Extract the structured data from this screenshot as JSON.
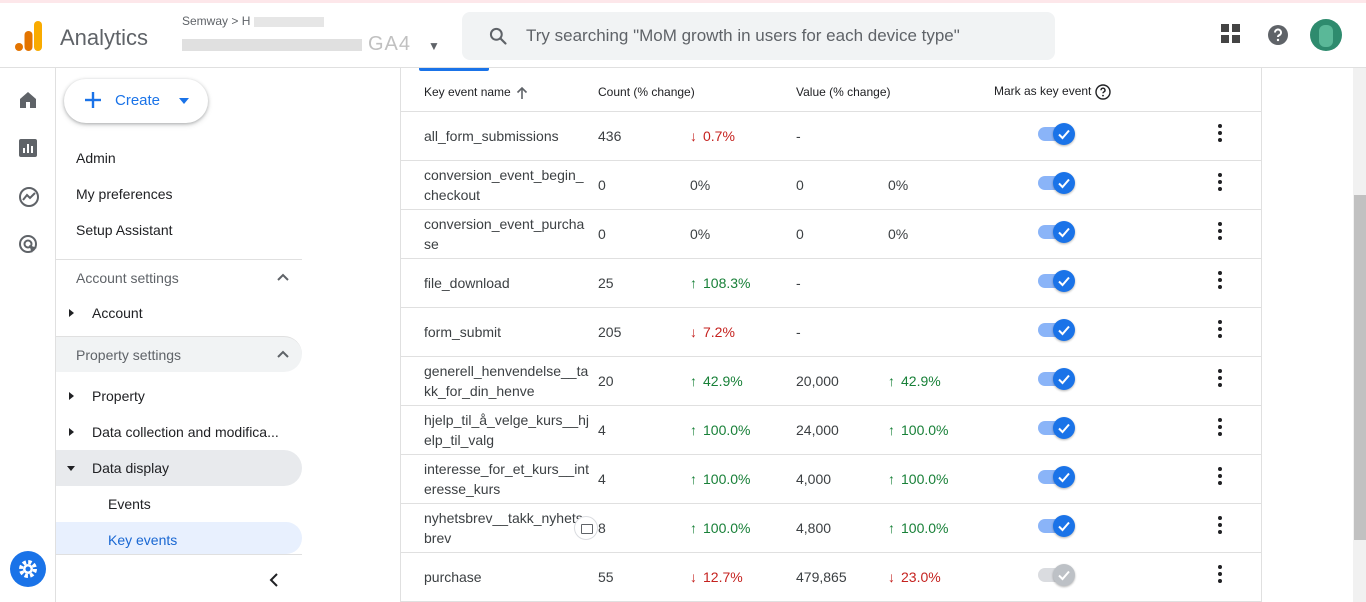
{
  "header": {
    "app_name": "Analytics",
    "account_prefix": "Semway > H",
    "property_suffix": "GA4",
    "search_placeholder": "Try searching \"MoM growth in users for each device type\""
  },
  "sidebar": {
    "create_label": "Create",
    "links": [
      "Admin",
      "My preferences",
      "Setup Assistant"
    ],
    "account_settings": "Account settings",
    "account_item": "Account",
    "property_settings": "Property settings",
    "property_item": "Property",
    "data_collection_item": "Data collection and modifica...",
    "data_display_item": "Data display",
    "events_item": "Events",
    "key_events_item": "Key events"
  },
  "table": {
    "headers": {
      "name": "Key event name",
      "count": "Count (% change)",
      "value": "Value (% change)",
      "mark": "Mark as key event"
    },
    "rows": [
      {
        "name": "all_form_submissions",
        "count": "436",
        "count_chg": "0.7%",
        "count_dir": "down",
        "value": "-",
        "value_chg": "",
        "value_dir": "",
        "on": true
      },
      {
        "name": "conversion_event_begin_checkout",
        "count": "0",
        "count_chg": "0%",
        "count_dir": "",
        "value": "0",
        "value_chg": "0%",
        "value_dir": "",
        "on": true
      },
      {
        "name": "conversion_event_purchase",
        "count": "0",
        "count_chg": "0%",
        "count_dir": "",
        "value": "0",
        "value_chg": "0%",
        "value_dir": "",
        "on": true
      },
      {
        "name": "file_download",
        "count": "25",
        "count_chg": "108.3%",
        "count_dir": "up",
        "value": "-",
        "value_chg": "",
        "value_dir": "",
        "on": true
      },
      {
        "name": "form_submit",
        "count": "205",
        "count_chg": "7.2%",
        "count_dir": "down",
        "value": "-",
        "value_chg": "",
        "value_dir": "",
        "on": true
      },
      {
        "name": "generell_henvendelse__takk_for_din_henve",
        "count": "20",
        "count_chg": "42.9%",
        "count_dir": "up",
        "value": "20,000",
        "value_chg": "42.9%",
        "value_dir": "up",
        "on": true
      },
      {
        "name": "hjelp_til_å_velge_kurs__hjelp_til_valg",
        "count": "4",
        "count_chg": "100.0%",
        "count_dir": "up",
        "value": "24,000",
        "value_chg": "100.0%",
        "value_dir": "up",
        "on": true
      },
      {
        "name": "interesse_for_et_kurs__interesse_kurs",
        "count": "4",
        "count_chg": "100.0%",
        "count_dir": "up",
        "value": "4,000",
        "value_chg": "100.0%",
        "value_dir": "up",
        "on": true
      },
      {
        "name": "nyhetsbrev__takk_nyhetsbrev",
        "count": "8",
        "count_chg": "100.0%",
        "count_dir": "up",
        "value": "4,800",
        "value_chg": "100.0%",
        "value_dir": "up",
        "on": true,
        "badge": true
      },
      {
        "name": "purchase",
        "count": "55",
        "count_chg": "12.7%",
        "count_dir": "down",
        "value": "479,865",
        "value_chg": "23.0%",
        "value_dir": "down",
        "on": false
      }
    ]
  },
  "colors": {
    "accent": "#1a73e8",
    "up": "#188038",
    "down": "#c5221f"
  }
}
